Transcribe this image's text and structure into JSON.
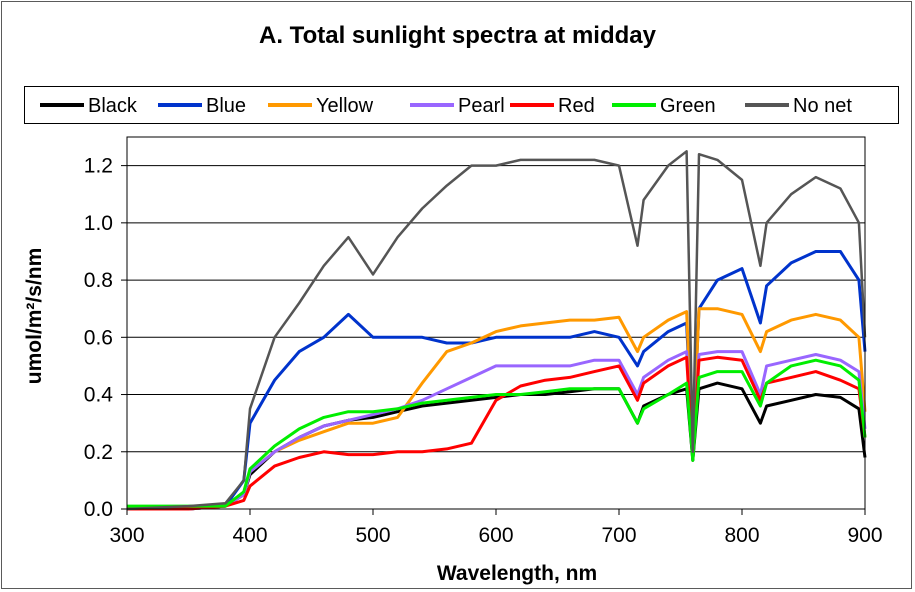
{
  "chart_data": {
    "type": "line",
    "title": "A. Total sunlight spectra at midday",
    "xlabel": "Wavelength, nm",
    "ylabel": "umol/m²/s/nm",
    "xlim": [
      300,
      900
    ],
    "ylim": [
      0,
      1.3
    ],
    "xticks": [
      "300",
      "400",
      "500",
      "600",
      "700",
      "800",
      "900"
    ],
    "yticks": [
      "0.0",
      "0.2",
      "0.4",
      "0.6",
      "0.8",
      "1.0",
      "1.2"
    ],
    "grid": "horizontal",
    "legend_position": "top",
    "x": [
      300,
      350,
      380,
      395,
      400,
      420,
      440,
      460,
      480,
      500,
      520,
      540,
      560,
      580,
      600,
      620,
      640,
      660,
      680,
      700,
      715,
      720,
      740,
      755,
      760,
      765,
      780,
      800,
      815,
      820,
      840,
      860,
      880,
      895,
      900
    ],
    "series": [
      {
        "name": "Black",
        "color": "#000000",
        "values": [
          0,
          0,
          0.01,
          0.05,
          0.12,
          0.2,
          0.25,
          0.29,
          0.31,
          0.32,
          0.34,
          0.36,
          0.37,
          0.38,
          0.39,
          0.4,
          0.4,
          0.41,
          0.42,
          0.42,
          0.3,
          0.36,
          0.4,
          0.42,
          0.17,
          0.42,
          0.44,
          0.42,
          0.3,
          0.36,
          0.38,
          0.4,
          0.39,
          0.35,
          0.18
        ]
      },
      {
        "name": "Blue",
        "color": "#0033cc",
        "values": [
          0,
          0,
          0.01,
          0.1,
          0.3,
          0.45,
          0.55,
          0.6,
          0.68,
          0.6,
          0.6,
          0.6,
          0.58,
          0.58,
          0.6,
          0.6,
          0.6,
          0.6,
          0.62,
          0.6,
          0.5,
          0.55,
          0.62,
          0.65,
          0.2,
          0.7,
          0.8,
          0.84,
          0.65,
          0.78,
          0.86,
          0.9,
          0.9,
          0.8,
          0.55
        ]
      },
      {
        "name": "Yellow",
        "color": "#ff9900",
        "values": [
          0,
          0,
          0.01,
          0.05,
          0.13,
          0.2,
          0.24,
          0.27,
          0.3,
          0.3,
          0.32,
          0.44,
          0.55,
          0.58,
          0.62,
          0.64,
          0.65,
          0.66,
          0.66,
          0.67,
          0.55,
          0.6,
          0.66,
          0.69,
          0.2,
          0.7,
          0.7,
          0.68,
          0.55,
          0.62,
          0.66,
          0.68,
          0.66,
          0.6,
          0.34
        ]
      },
      {
        "name": "Pearl",
        "color": "#9966ff",
        "values": [
          0,
          0,
          0.01,
          0.05,
          0.13,
          0.2,
          0.25,
          0.29,
          0.31,
          0.33,
          0.35,
          0.38,
          0.42,
          0.46,
          0.5,
          0.5,
          0.5,
          0.5,
          0.52,
          0.52,
          0.4,
          0.46,
          0.52,
          0.55,
          0.18,
          0.54,
          0.55,
          0.55,
          0.4,
          0.5,
          0.52,
          0.54,
          0.52,
          0.48,
          0.28
        ]
      },
      {
        "name": "Red",
        "color": "#ff0000",
        "values": [
          0,
          0,
          0.01,
          0.03,
          0.08,
          0.15,
          0.18,
          0.2,
          0.19,
          0.19,
          0.2,
          0.2,
          0.21,
          0.23,
          0.38,
          0.43,
          0.45,
          0.46,
          0.48,
          0.5,
          0.38,
          0.44,
          0.5,
          0.53,
          0.18,
          0.52,
          0.53,
          0.52,
          0.38,
          0.44,
          0.46,
          0.48,
          0.45,
          0.42,
          0.25
        ]
      },
      {
        "name": "Green",
        "color": "#00ee00",
        "values": [
          0.01,
          0.01,
          0.01,
          0.06,
          0.14,
          0.22,
          0.28,
          0.32,
          0.34,
          0.34,
          0.35,
          0.37,
          0.38,
          0.39,
          0.4,
          0.4,
          0.41,
          0.42,
          0.42,
          0.42,
          0.3,
          0.35,
          0.4,
          0.44,
          0.17,
          0.46,
          0.48,
          0.48,
          0.36,
          0.44,
          0.5,
          0.52,
          0.5,
          0.45,
          0.25
        ]
      },
      {
        "name": "No net",
        "color": "#555555",
        "values": [
          0,
          0.01,
          0.02,
          0.1,
          0.35,
          0.6,
          0.72,
          0.85,
          0.95,
          0.82,
          0.95,
          1.05,
          1.13,
          1.2,
          1.2,
          1.22,
          1.22,
          1.22,
          1.22,
          1.2,
          0.92,
          1.08,
          1.2,
          1.25,
          0.2,
          1.24,
          1.22,
          1.15,
          0.85,
          1.0,
          1.1,
          1.16,
          1.12,
          1.0,
          0.6
        ]
      }
    ]
  }
}
